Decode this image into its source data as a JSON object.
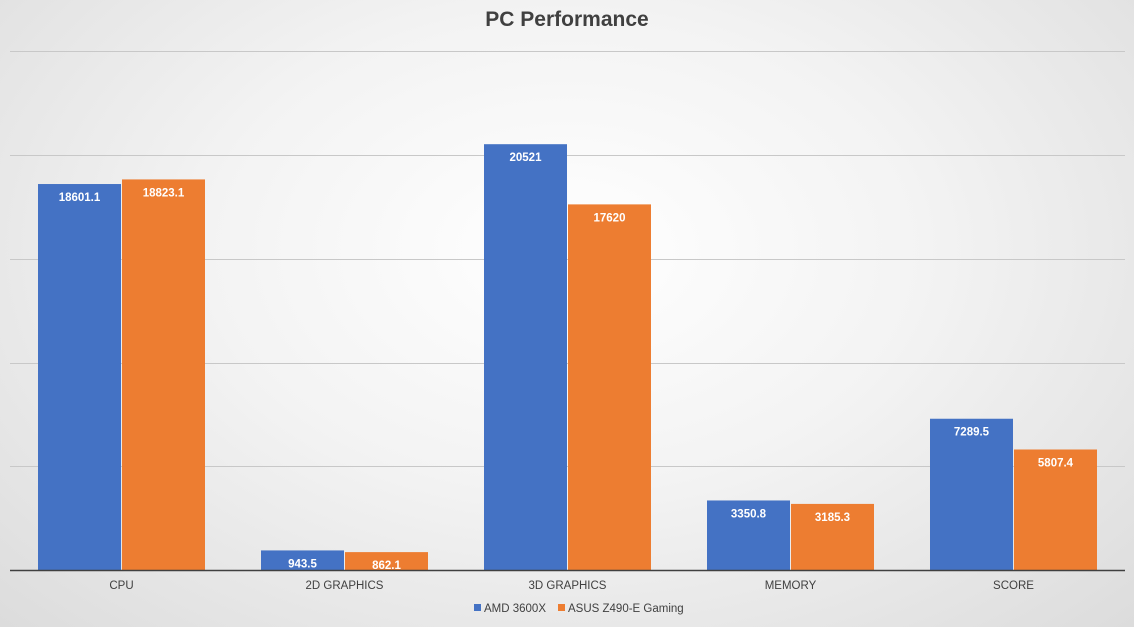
{
  "chart_data": {
    "type": "bar",
    "title": "PC Performance",
    "xlabel": "",
    "ylabel": "",
    "categories": [
      "CPU",
      "2D GRAPHICS",
      "3D GRAPHICS",
      "MEMORY",
      "SCORE"
    ],
    "series": [
      {
        "name": "AMD 3600X",
        "color": "#4472C4",
        "values": [
          18601.1,
          943.5,
          20521,
          3350.8,
          7289.5
        ]
      },
      {
        "name": "ASUS Z490-E Gaming",
        "color": "#ED7D31",
        "values": [
          18823.1,
          862.1,
          17620,
          3185.3,
          5807.4
        ]
      }
    ],
    "ylim": [
      0,
      25000
    ],
    "y_gridline_step": 5000,
    "y_tick_labels_shown": false,
    "grid": true,
    "data_labels": true,
    "legend_position": "bottom"
  }
}
